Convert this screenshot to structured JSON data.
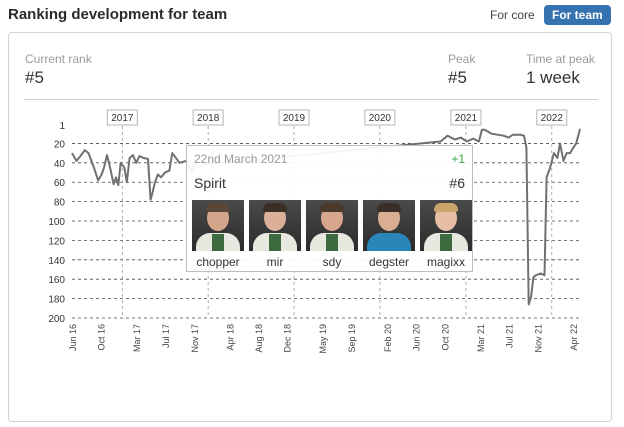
{
  "header": {
    "title": "Ranking development for team",
    "core_label": "For core",
    "team_label": "For team"
  },
  "stats": {
    "current_rank_label": "Current rank",
    "current_rank": "#5",
    "peak_label": "Peak",
    "peak": "#5",
    "time_label": "Time at peak",
    "time": "1 week"
  },
  "colors": {
    "accent": "#3572b0",
    "line": "#707070",
    "positive": "#3aa33a"
  },
  "chart_data": {
    "type": "line",
    "y_inverted": true,
    "ylim": [
      1,
      200
    ],
    "y_ticks": [
      "1",
      "20",
      "40",
      "60",
      "80",
      "100",
      "120",
      "140",
      "160",
      "180",
      "200"
    ],
    "year_markers": [
      {
        "label": "2017",
        "date": "2017-01-01"
      },
      {
        "label": "2018",
        "date": "2018-01-01"
      },
      {
        "label": "2019",
        "date": "2019-01-01"
      },
      {
        "label": "2020",
        "date": "2020-01-01"
      },
      {
        "label": "2021",
        "date": "2021-01-01"
      },
      {
        "label": "2022",
        "date": "2022-01-01"
      }
    ],
    "x_ticks": [
      {
        "label": "Jun 16",
        "date": "2016-06-01"
      },
      {
        "label": "Oct 16",
        "date": "2016-10-01"
      },
      {
        "label": "Mar 17",
        "date": "2017-03-01"
      },
      {
        "label": "Jul 17",
        "date": "2017-07-01"
      },
      {
        "label": "Nov 17",
        "date": "2017-11-01"
      },
      {
        "label": "Apr 18",
        "date": "2018-04-01"
      },
      {
        "label": "Aug 18",
        "date": "2018-08-01"
      },
      {
        "label": "Dec 18",
        "date": "2018-12-01"
      },
      {
        "label": "May 19",
        "date": "2019-05-01"
      },
      {
        "label": "Sep 19",
        "date": "2019-09-01"
      },
      {
        "label": "Feb 20",
        "date": "2020-02-01"
      },
      {
        "label": "Jun 20",
        "date": "2020-06-01"
      },
      {
        "label": "Oct 20",
        "date": "2020-10-01"
      },
      {
        "label": "Mar 21",
        "date": "2021-03-01"
      },
      {
        "label": "Jul 21",
        "date": "2021-07-01"
      },
      {
        "label": "Nov 21",
        "date": "2021-11-01"
      },
      {
        "label": "Apr 22",
        "date": "2022-04-01"
      }
    ],
    "series": [
      {
        "points": [
          [
            "2016-06-01",
            30
          ],
          [
            "2016-06-20",
            38
          ],
          [
            "2016-07-10",
            32
          ],
          [
            "2016-07-25",
            27
          ],
          [
            "2016-08-10",
            30
          ],
          [
            "2016-09-01",
            44
          ],
          [
            "2016-09-20",
            58
          ],
          [
            "2016-10-05",
            52
          ],
          [
            "2016-10-15",
            45
          ],
          [
            "2016-10-28",
            32
          ],
          [
            "2016-11-10",
            45
          ],
          [
            "2016-11-25",
            62
          ],
          [
            "2016-12-05",
            55
          ],
          [
            "2016-12-15",
            63
          ],
          [
            "2016-12-25",
            40
          ],
          [
            "2017-01-10",
            45
          ],
          [
            "2017-01-20",
            60
          ],
          [
            "2017-02-01",
            35
          ],
          [
            "2017-02-15",
            32
          ],
          [
            "2017-03-01",
            40
          ],
          [
            "2017-03-15",
            33
          ],
          [
            "2017-04-01",
            35
          ],
          [
            "2017-04-20",
            36
          ],
          [
            "2017-05-01",
            78
          ],
          [
            "2017-05-10",
            70
          ],
          [
            "2017-05-20",
            60
          ],
          [
            "2017-06-01",
            52
          ],
          [
            "2017-06-15",
            55
          ],
          [
            "2017-07-01",
            50
          ],
          [
            "2017-07-20",
            48
          ],
          [
            "2017-08-01",
            30
          ],
          [
            "2017-08-20",
            36
          ],
          [
            "2017-09-01",
            40
          ],
          [
            "2017-10-01",
            38
          ],
          [
            "2017-10-20",
            50
          ],
          [
            "2017-11-05",
            42
          ],
          [
            "2017-11-25",
            44
          ],
          [
            "2017-12-15",
            42
          ],
          [
            "2020-09-15",
            18
          ],
          [
            "2020-10-15",
            12
          ],
          [
            "2020-11-15",
            16
          ],
          [
            "2020-12-10",
            14
          ],
          [
            "2021-01-05",
            18
          ],
          [
            "2021-02-01",
            15
          ],
          [
            "2021-02-25",
            18
          ],
          [
            "2021-03-10",
            6
          ],
          [
            "2021-03-22",
            6
          ],
          [
            "2021-04-20",
            10
          ],
          [
            "2021-05-15",
            11
          ],
          [
            "2021-06-10",
            12
          ],
          [
            "2021-07-01",
            14
          ],
          [
            "2021-07-20",
            11
          ],
          [
            "2021-08-20",
            11
          ],
          [
            "2021-09-05",
            12
          ],
          [
            "2021-09-15",
            24
          ],
          [
            "2021-09-25",
            186
          ],
          [
            "2021-10-05",
            178
          ],
          [
            "2021-10-15",
            158
          ],
          [
            "2021-10-25",
            156
          ],
          [
            "2021-11-15",
            154
          ],
          [
            "2021-12-01",
            156
          ],
          [
            "2021-12-10",
            55
          ],
          [
            "2021-12-25",
            45
          ],
          [
            "2022-01-10",
            30
          ],
          [
            "2022-01-25",
            35
          ],
          [
            "2022-02-05",
            20
          ],
          [
            "2022-02-20",
            38
          ],
          [
            "2022-03-05",
            30
          ],
          [
            "2022-03-20",
            30
          ],
          [
            "2022-04-01",
            25
          ],
          [
            "2022-04-15",
            20
          ],
          [
            "2022-05-01",
            5
          ]
        ]
      }
    ]
  },
  "tooltip": {
    "date": "22nd March 2021",
    "change": "+1",
    "team": "Spirit",
    "rank": "#6",
    "players": [
      {
        "name": "chopper",
        "skin": "#d4a58a",
        "hair": "#5a4636",
        "shirt": "#e8e8e1"
      },
      {
        "name": "mir",
        "skin": "#dcb098",
        "hair": "#3a2e26",
        "shirt": "#e8e8e1"
      },
      {
        "name": "sdy",
        "skin": "#d7a68c",
        "hair": "#4b3a2b",
        "shirt": "#e8e8e1"
      },
      {
        "name": "degster",
        "skin": "#d9ae93",
        "hair": "#3a2f28",
        "shirt": "#2a86b8"
      },
      {
        "name": "magixx",
        "skin": "#e6bfa4",
        "hair": "#c9a66b",
        "shirt": "#e8e8e1"
      }
    ]
  }
}
